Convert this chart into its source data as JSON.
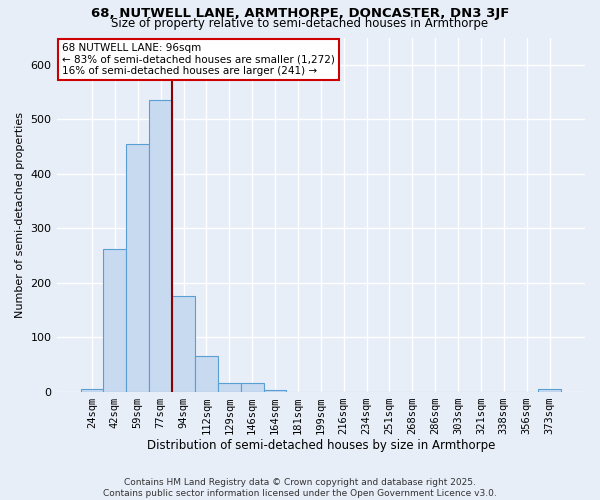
{
  "title1": "68, NUTWELL LANE, ARMTHORPE, DONCASTER, DN3 3JF",
  "title2": "Size of property relative to semi-detached houses in Armthorpe",
  "xlabel": "Distribution of semi-detached houses by size in Armthorpe",
  "ylabel": "Number of semi-detached properties",
  "footer1": "Contains HM Land Registry data © Crown copyright and database right 2025.",
  "footer2": "Contains public sector information licensed under the Open Government Licence v3.0.",
  "bin_labels": [
    "24sqm",
    "42sqm",
    "59sqm",
    "77sqm",
    "94sqm",
    "112sqm",
    "129sqm",
    "146sqm",
    "164sqm",
    "181sqm",
    "199sqm",
    "216sqm",
    "234sqm",
    "251sqm",
    "268sqm",
    "286sqm",
    "303sqm",
    "321sqm",
    "338sqm",
    "356sqm",
    "373sqm"
  ],
  "bar_values": [
    5,
    262,
    455,
    535,
    176,
    65,
    16,
    16,
    3,
    0,
    0,
    0,
    0,
    0,
    0,
    0,
    0,
    0,
    0,
    0,
    5
  ],
  "bar_color": "#c8daf0",
  "bar_edge_color": "#5a9fd4",
  "red_line_index": 4,
  "highlight_label": "68 NUTWELL LANE: 96sqm",
  "annotation_line1": "← 83% of semi-detached houses are smaller (1,272)",
  "annotation_line2": "16% of semi-detached houses are larger (241) →",
  "annotation_box_color": "#ffffff",
  "annotation_box_edge": "#cc0000",
  "ylim": [
    0,
    650
  ],
  "background_color": "#e8eef8",
  "grid_color": "#ffffff",
  "title1_fontsize": 9.5,
  "title2_fontsize": 8.5,
  "ylabel_fontsize": 8,
  "xlabel_fontsize": 8.5,
  "tick_fontsize": 7.5,
  "footer_fontsize": 6.5,
  "annot_fontsize": 7.5
}
